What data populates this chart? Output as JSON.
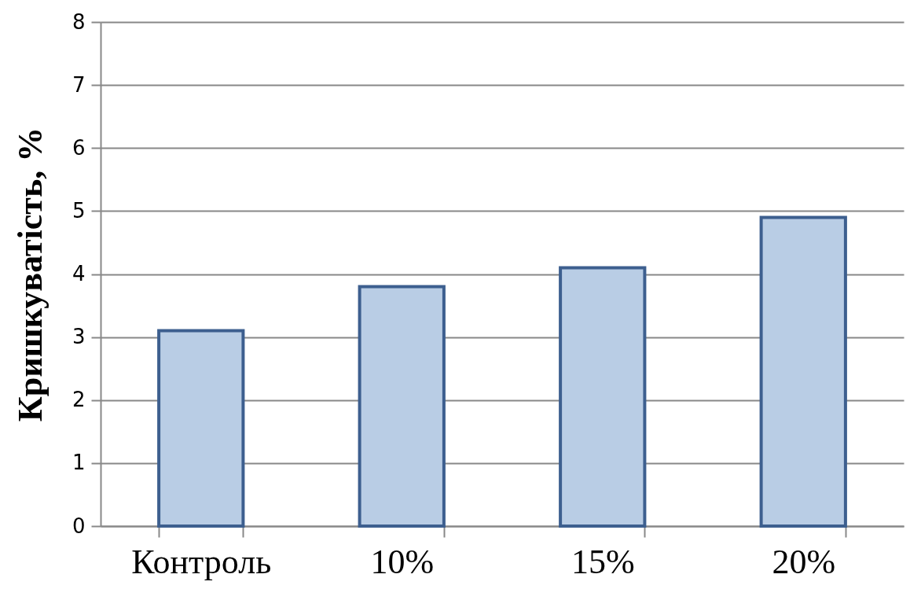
{
  "chart_data": {
    "type": "bar",
    "ylabel": "Кришкуватість, %",
    "categories": [
      "Контроль",
      "10%",
      "15%",
      "20%"
    ],
    "values": [
      3.1,
      3.8,
      4.1,
      4.9
    ],
    "color": "#b9cde5",
    "ylim": [
      0,
      8
    ],
    "yticks": [
      0,
      1,
      2,
      3,
      4,
      5,
      6,
      7,
      8
    ],
    "grid": "y"
  }
}
